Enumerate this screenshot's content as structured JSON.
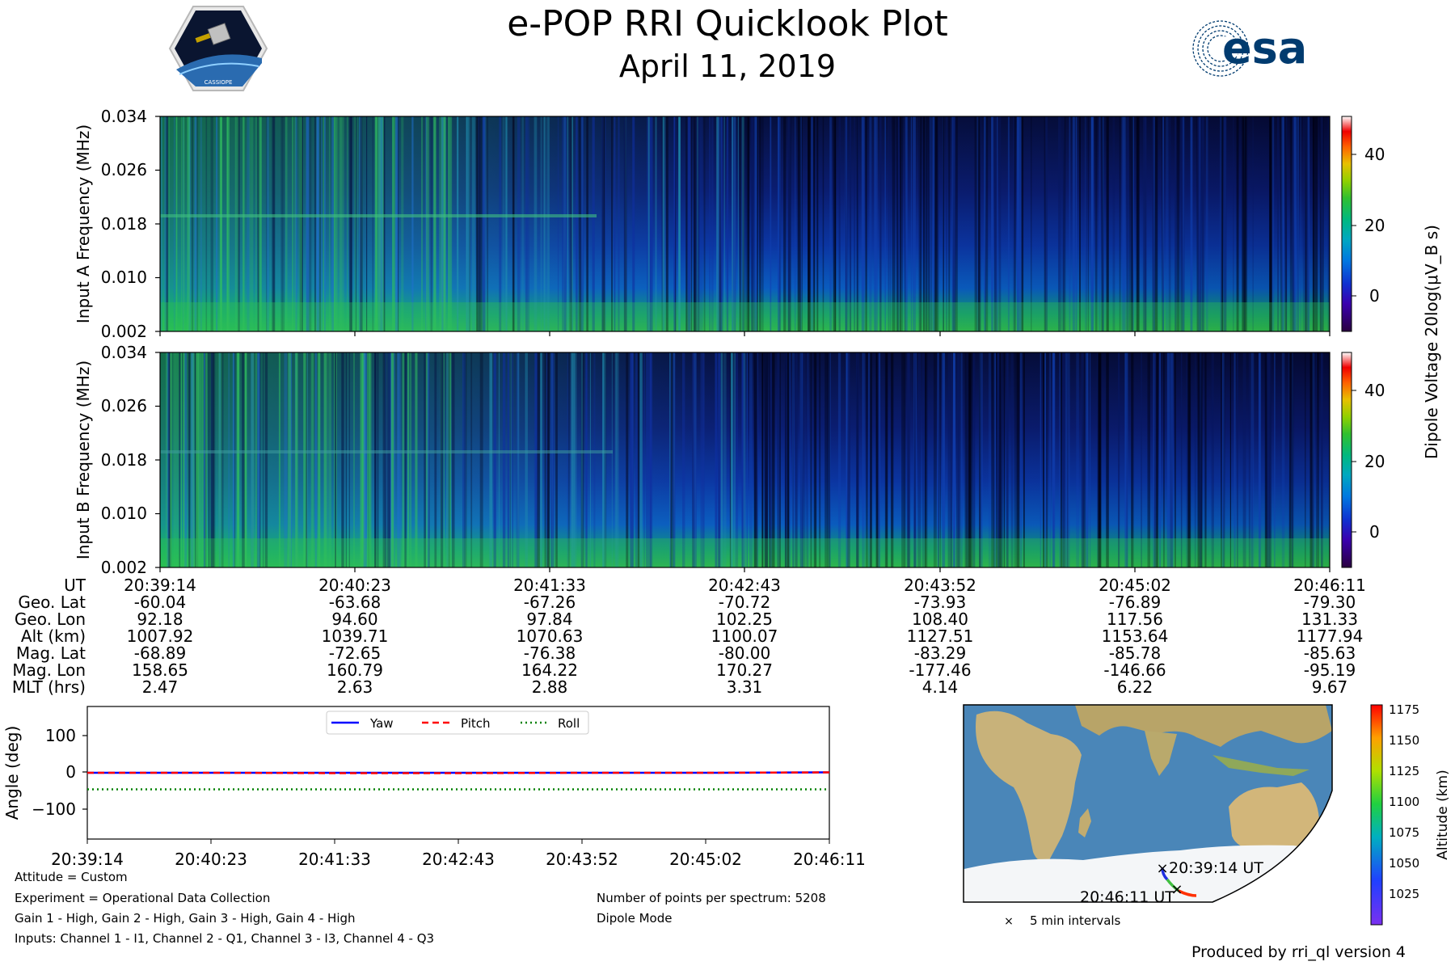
{
  "header": {
    "title": "e-POP RRI Quicklook Plot",
    "date": "April 11, 2019",
    "left_logo_text": "CASSIOPE",
    "right_logo_text": "esa"
  },
  "colors": {
    "spectrogram_colormap": [
      "#300040",
      "#3000a0",
      "#1030d0",
      "#0070e0",
      "#00a8c0",
      "#00c080",
      "#20c040",
      "#80d010",
      "#e0c000",
      "#ff6000",
      "#f00000",
      "#ffffff"
    ],
    "map_ocean": "#4a86b8",
    "map_land": "#c8b27a",
    "map_ice": "#f4f6f8",
    "yaw": "#0000ff",
    "pitch": "#ff0000",
    "roll": "#008000"
  },
  "panels": {
    "a_ylabel": "Input A Frequency (MHz)",
    "b_ylabel": "Input B Frequency (MHz)",
    "yticks": [
      "0.034",
      "0.026",
      "0.018",
      "0.010",
      "0.002"
    ],
    "colorbar_label": "Dipole Voltage 20log(μV_B s)",
    "colorbar_ticks": [
      "40",
      "20",
      "0"
    ]
  },
  "ephemeris": {
    "labels": [
      "UT",
      "Geo. Lat",
      "Geo. Lon",
      "Alt (km)",
      "Mag. Lat",
      "Mag. Lon",
      "MLT (hrs)"
    ],
    "columns": [
      [
        "20:39:14",
        "-60.04",
        "92.18",
        "1007.92",
        "-68.89",
        "158.65",
        "2.47"
      ],
      [
        "20:40:23",
        "-63.68",
        "94.60",
        "1039.71",
        "-72.65",
        "160.79",
        "2.63"
      ],
      [
        "20:41:33",
        "-67.26",
        "97.84",
        "1070.63",
        "-76.38",
        "164.22",
        "2.88"
      ],
      [
        "20:42:43",
        "-70.72",
        "102.25",
        "1100.07",
        "-80.00",
        "170.27",
        "3.31"
      ],
      [
        "20:43:52",
        "-73.93",
        "108.40",
        "1127.51",
        "-83.29",
        "-177.46",
        "4.14"
      ],
      [
        "20:45:02",
        "-76.89",
        "117.56",
        "1153.64",
        "-85.78",
        "-146.66",
        "6.22"
      ],
      [
        "20:46:11",
        "-79.30",
        "131.33",
        "1177.94",
        "-85.63",
        "-95.19",
        "9.67"
      ]
    ]
  },
  "chart_data": [
    {
      "type": "heatmap",
      "ylabel": "Input A Frequency (MHz)",
      "ylim": [
        0.002,
        0.034
      ],
      "y_ticks": [
        0.002,
        0.01,
        0.018,
        0.026,
        0.034
      ],
      "x_ticks": [
        "20:39:14",
        "20:40:23",
        "20:41:33",
        "20:42:43",
        "20:43:52",
        "20:45:02",
        "20:46:11"
      ],
      "colorbar_label": "Dipole Voltage 20log(μV_B s)",
      "colorbar_range": [
        -10,
        50
      ],
      "colorbar_ticks": [
        0,
        20,
        40
      ]
    },
    {
      "type": "heatmap",
      "ylabel": "Input B Frequency (MHz)",
      "ylim": [
        0.002,
        0.034
      ],
      "y_ticks": [
        0.002,
        0.01,
        0.018,
        0.026,
        0.034
      ],
      "x_ticks": [
        "20:39:14",
        "20:40:23",
        "20:41:33",
        "20:42:43",
        "20:43:52",
        "20:45:02",
        "20:46:11"
      ],
      "colorbar_label": "Dipole Voltage 20log(μV_B s)",
      "colorbar_range": [
        -10,
        50
      ],
      "colorbar_ticks": [
        0,
        20,
        40
      ]
    },
    {
      "type": "line",
      "ylabel": "Angle (deg)",
      "ylim": [
        -180,
        180
      ],
      "y_ticks": [
        -100,
        0,
        100
      ],
      "x": [
        "20:39:14",
        "20:40:23",
        "20:41:33",
        "20:42:43",
        "20:43:52",
        "20:45:02",
        "20:46:11"
      ],
      "series": [
        {
          "name": "Yaw",
          "values": [
            0,
            0,
            0,
            0,
            0,
            0,
            1
          ],
          "style": "solid"
        },
        {
          "name": "Pitch",
          "values": [
            0,
            0,
            -1,
            -1,
            0,
            0,
            1
          ],
          "style": "dashed"
        },
        {
          "name": "Roll",
          "values": [
            -45,
            -45,
            -45,
            -45,
            -45,
            -45,
            -45
          ],
          "style": "dotted"
        }
      ],
      "legend": "top-center"
    },
    {
      "type": "scatter",
      "ylabel": "Altitude (km)",
      "colorbar_range": [
        1007.92,
        1177.94
      ],
      "colorbar_ticks": [
        "1025",
        "1050",
        "1075",
        "1100",
        "1125",
        "1150",
        "1175"
      ],
      "annotations": [
        "20:39:14 UT",
        "20:46:11 UT"
      ],
      "legend": "5 min intervals"
    }
  ],
  "attitude": {
    "ylabel": "Angle (deg)",
    "yticks": [
      "100",
      "0",
      "−100"
    ],
    "xticks": [
      "20:39:14",
      "20:40:23",
      "20:41:33",
      "20:42:43",
      "20:43:52",
      "20:45:02",
      "20:46:11"
    ],
    "legend": [
      "Yaw",
      "Pitch",
      "Roll"
    ]
  },
  "map": {
    "start_label": "20:39:14 UT",
    "end_label": "20:46:11 UT",
    "colorbar_label": "Altitude (km)",
    "colorbar_ticks": [
      "1175",
      "1150",
      "1125",
      "1100",
      "1075",
      "1050",
      "1025"
    ],
    "legend_text": "5 min intervals"
  },
  "info": {
    "attitude": "Attitude = Custom",
    "experiment": "Experiment = Operational Data Collection",
    "gains": "Gain 1 - High, Gain 2 - High, Gain 3 - High, Gain 4 - High",
    "inputs": "Inputs: Channel 1 - I1, Channel 2 - Q1, Channel 3 - I3, Channel 4 - Q3",
    "points": "Number of points per spectrum: 5208",
    "mode": "Dipole Mode",
    "produced_by": "Produced by rri_ql version 4"
  }
}
